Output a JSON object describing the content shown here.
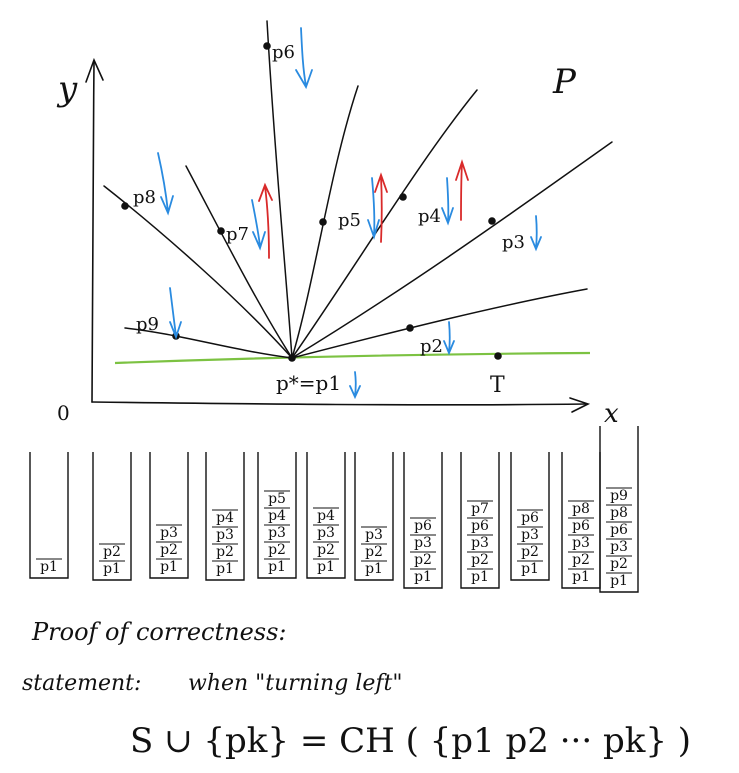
{
  "axes": {
    "y_label": "y",
    "x_label": "x",
    "origin_label": "0",
    "set_label": "P"
  },
  "points": [
    {
      "id": "p1",
      "label": "p*=p1"
    },
    {
      "id": "p2",
      "label": "p2"
    },
    {
      "id": "p3",
      "label": "p3"
    },
    {
      "id": "p4",
      "label": "p4"
    },
    {
      "id": "p5",
      "label": "p5"
    },
    {
      "id": "p6",
      "label": "p6"
    },
    {
      "id": "p7",
      "label": "p7"
    },
    {
      "id": "p8",
      "label": "p8"
    },
    {
      "id": "p9",
      "label": "p9"
    },
    {
      "id": "T",
      "label": "T"
    }
  ],
  "stacks": [
    [
      "p1"
    ],
    [
      "p2",
      "p1"
    ],
    [
      "p3",
      "p2",
      "p1"
    ],
    [
      "p4",
      "p3",
      "p2",
      "p1"
    ],
    [
      "p5",
      "p4",
      "p3",
      "p2",
      "p1"
    ],
    [
      "p4",
      "p3",
      "p2",
      "p1"
    ],
    [
      "p3",
      "p2",
      "p1"
    ],
    [
      "p6",
      "p3",
      "p2",
      "p1"
    ],
    [
      "p7",
      "p6",
      "p3",
      "p2",
      "p1"
    ],
    [
      "p6",
      "p3",
      "p2",
      "p1"
    ],
    [
      "p8",
      "p6",
      "p3",
      "p2",
      "p1"
    ],
    [
      "p9",
      "p8",
      "p6",
      "p3",
      "p2",
      "p1"
    ]
  ],
  "notes": {
    "proof_title": "Proof of correctness:",
    "statement_label": "statement:",
    "statement_text": "when \"turning left\"",
    "formula": "S ∪ {pk} = CH ( {p1 p2 ··· pk} )"
  },
  "colors": {
    "ink": "#111111",
    "green": "#7cc242",
    "blue": "#2a8be0",
    "red": "#d92a2a"
  }
}
